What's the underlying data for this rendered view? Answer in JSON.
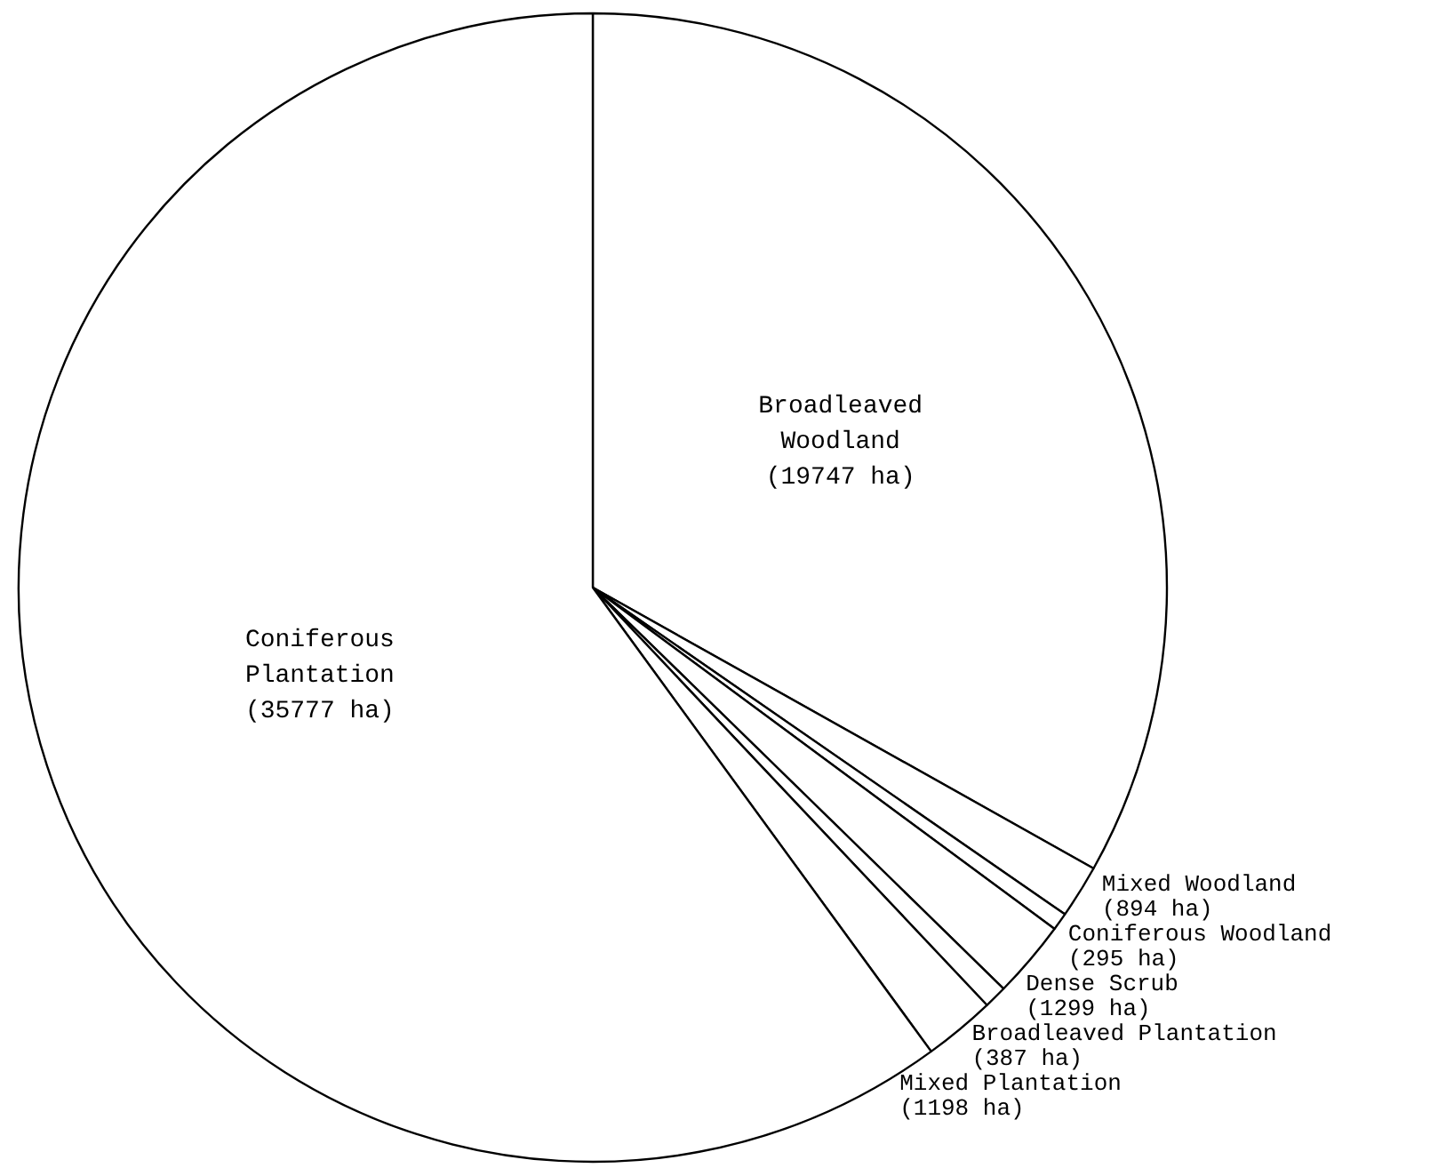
{
  "chart_data": {
    "type": "pie",
    "categories": [
      "Broadleaved Woodland",
      "Mixed Woodland",
      "Coniferous Woodland",
      "Dense Scrub",
      "Broadleaved Plantation",
      "Mixed Plantation",
      "Coniferous Plantation"
    ],
    "values": [
      19747,
      894,
      295,
      1299,
      387,
      1198,
      35777
    ],
    "value_labels": [
      "(19747 ha)",
      "(894 ha)",
      "(295 ha)",
      "(1299 ha)",
      "(387 ha)",
      "(1198 ha)",
      "(35777 ha)"
    ],
    "colors": [
      "#ffffff",
      "#ffffff",
      "#ffffff",
      "#ffffff",
      "#ffffff",
      "#ffffff",
      "#ffffff"
    ]
  }
}
